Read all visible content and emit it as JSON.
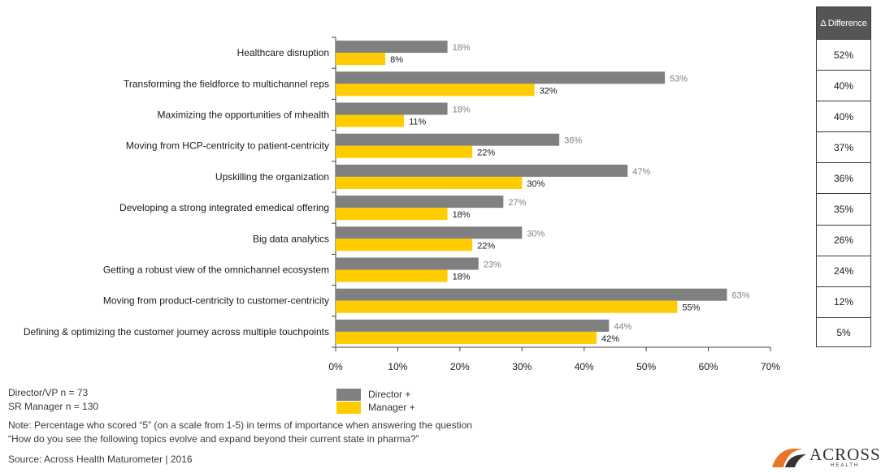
{
  "chart_data": {
    "type": "bar",
    "orientation": "horizontal",
    "categories": [
      "Healthcare disruption",
      "Transforming the fieldforce to multichannel reps",
      "Maximizing the opportunities of mhealth",
      "Moving from HCP-centricity to patient-centricity",
      "Upskilling the organization",
      "Developing a strong integrated emedical offering",
      "Big data analytics",
      "Getting a robust view of the omnichannel ecosystem",
      "Moving from product-centricity to customer-centricity",
      "Defining & optimizing the customer journey across multiple touchpoints"
    ],
    "series": [
      {
        "name": "Director +",
        "color": "#808080",
        "values": [
          18,
          53,
          18,
          36,
          47,
          27,
          30,
          23,
          63,
          44
        ],
        "labels": [
          "18%",
          "53%",
          "18%",
          "36%",
          "47%",
          "27%",
          "30%",
          "23%",
          "63%",
          "44%"
        ]
      },
      {
        "name": "Manager +",
        "color": "#FFCC00",
        "values": [
          8,
          32,
          11,
          22,
          30,
          18,
          22,
          18,
          55,
          42
        ],
        "labels": [
          "8%",
          "32%",
          "11%",
          "22%",
          "30%",
          "18%",
          "22%",
          "18%",
          "55%",
          "42%"
        ]
      }
    ],
    "xlim": [
      0,
      70
    ],
    "xticks": [
      "0%",
      "10%",
      "20%",
      "30%",
      "40%",
      "50%",
      "60%",
      "70%"
    ],
    "grid": false,
    "legend_position": "bottom"
  },
  "difference_table": {
    "header": "Δ Difference",
    "values": [
      "52%",
      "40%",
      "40%",
      "37%",
      "36%",
      "35%",
      "26%",
      "24%",
      "12%",
      "5%"
    ]
  },
  "legend": {
    "director_label": "Director +",
    "manager_label": "Manager +",
    "director_color": "#808080",
    "manager_color": "#FFCC00"
  },
  "notes": {
    "sample_director": "Director/VP n = 73",
    "sample_manager": "SR Manager n = 130",
    "note_line1": "Note: Percentage who scored “5” (on a scale from 1-5) in terms of importance when answering the question",
    "note_line2": "“How do you see the following topics evolve and expand beyond their current state in pharma?”",
    "source": "Source: Across Health Maturometer  |  2016"
  },
  "logo": {
    "name": "ACROSS",
    "sub": "HEALTH",
    "icon": "across-health-logo-icon"
  }
}
